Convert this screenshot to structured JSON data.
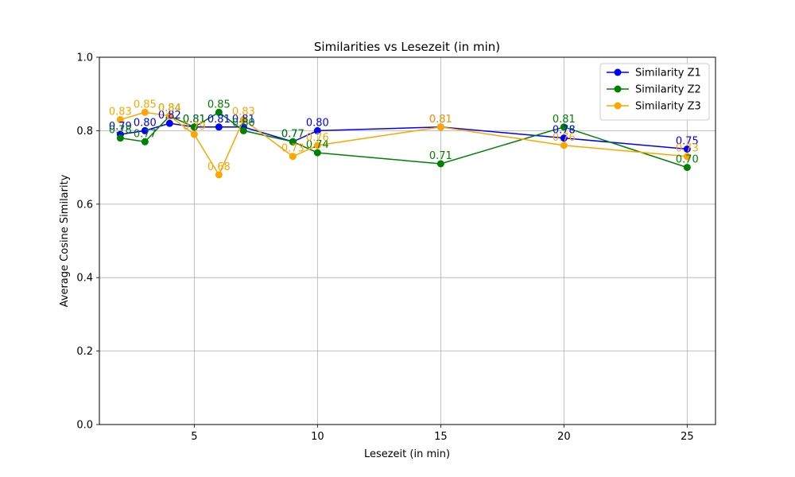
{
  "chart_data": {
    "type": "line",
    "title": "Similarities vs Lesezeit (in min)",
    "xlabel": "Lesezeit (in min)",
    "ylabel": "Average Cosine Similarity",
    "xlim": [
      1.15,
      26.15
    ],
    "ylim": [
      0.0,
      1.0
    ],
    "xticks": [
      5,
      10,
      15,
      20,
      25
    ],
    "yticks": [
      0.0,
      0.2,
      0.4,
      0.6,
      0.8,
      1.0
    ],
    "grid": true,
    "legend_position": "top-right",
    "x": [
      2,
      3,
      4,
      5,
      6,
      7,
      9,
      10,
      15,
      20,
      25
    ],
    "series": [
      {
        "name": "Similarity Z1",
        "color": "#0000ff",
        "values": [
          0.79,
          0.8,
          0.82,
          0.81,
          0.81,
          0.81,
          0.77,
          0.8,
          0.81,
          0.78,
          0.75
        ],
        "labels": [
          "0.79",
          "0.80",
          "0.82",
          "0.81",
          "0.81",
          "0.81",
          "0.77",
          "0.80",
          "0.81",
          "0.78",
          "0.75"
        ]
      },
      {
        "name": "Similarity Z2",
        "color": "#008000",
        "values": [
          0.78,
          0.77,
          0.84,
          0.81,
          0.85,
          0.8,
          0.77,
          0.74,
          0.71,
          0.81,
          0.7
        ],
        "labels": [
          "0.78",
          "0.77",
          "0.84",
          "0.81",
          "0.85",
          "0.80",
          "0.77",
          "0.74",
          "0.71",
          "0.81",
          "0.70"
        ]
      },
      {
        "name": "Similarity Z3",
        "color": "#ffa500",
        "values": [
          0.83,
          0.85,
          0.84,
          0.79,
          0.68,
          0.83,
          0.73,
          0.76,
          0.81,
          0.76,
          0.73
        ],
        "labels": [
          "0.83",
          "0.85",
          "0.84",
          "0.79",
          "0.68",
          "0.83",
          "0.73",
          "0.76",
          "0.81",
          "0.76",
          "0.73"
        ]
      }
    ]
  }
}
